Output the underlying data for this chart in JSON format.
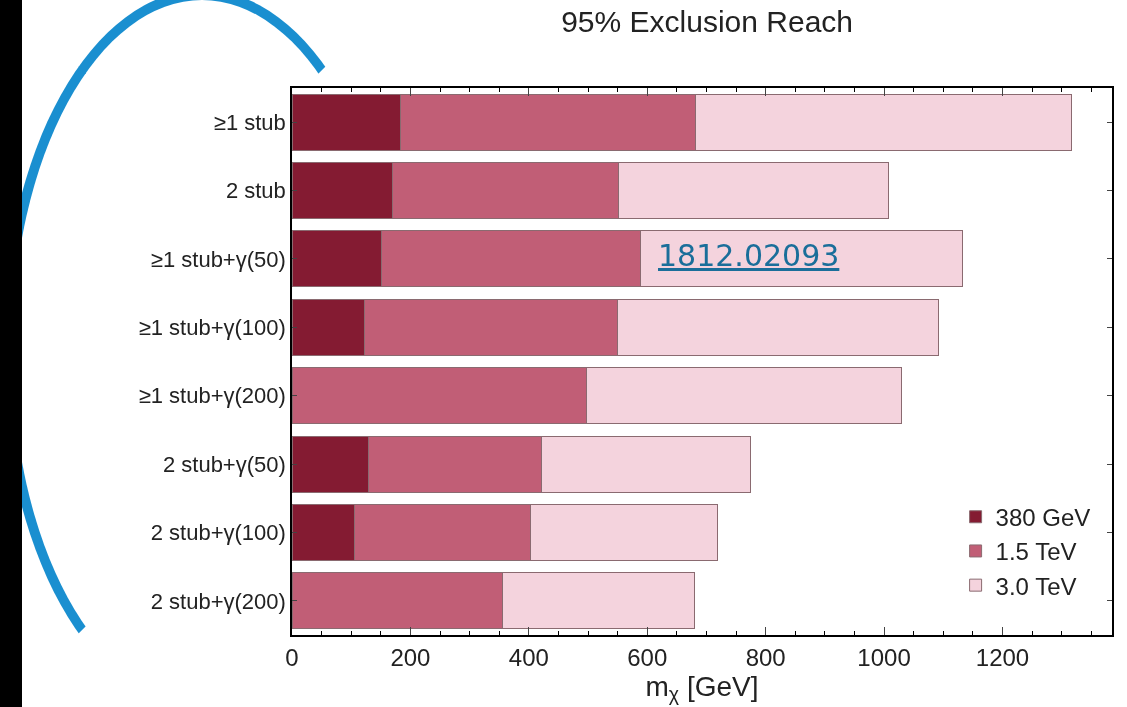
{
  "chart_data": {
    "type": "bar",
    "orientation": "horizontal",
    "stacked": true,
    "title": "95% Exclusion Reach",
    "xlabel": "m$_{χ}$ [GeV]",
    "categories": [
      "≥1 stub",
      "2 stub",
      "≥1 stub+γ(50)",
      "≥1 stub+γ(100)",
      "≥1 stub+γ(200)",
      "2 stub+γ(50)",
      "2 stub+γ(100)",
      "2 stub+γ(200)"
    ],
    "series": [
      {
        "name": "380 GeV",
        "color": "#841b32",
        "values": [
          184,
          170,
          151,
          123,
          null,
          129,
          105,
          null
        ]
      },
      {
        "name": "1.5 TeV",
        "color": "#c15e76",
        "values": [
          497,
          381,
          438,
          426,
          498,
          293,
          297,
          355
        ]
      },
      {
        "name": "3.0 TeV",
        "color": "#f4d3dd",
        "values": [
          635,
          456,
          544,
          543,
          531,
          352,
          317,
          324
        ]
      }
    ],
    "xlim": [
      0,
      1385
    ],
    "xticks": [
      0,
      200,
      400,
      600,
      800,
      1000,
      1200
    ],
    "grid": false,
    "legend": "bottom right",
    "annotations": [
      "1812.02093"
    ]
  }
}
